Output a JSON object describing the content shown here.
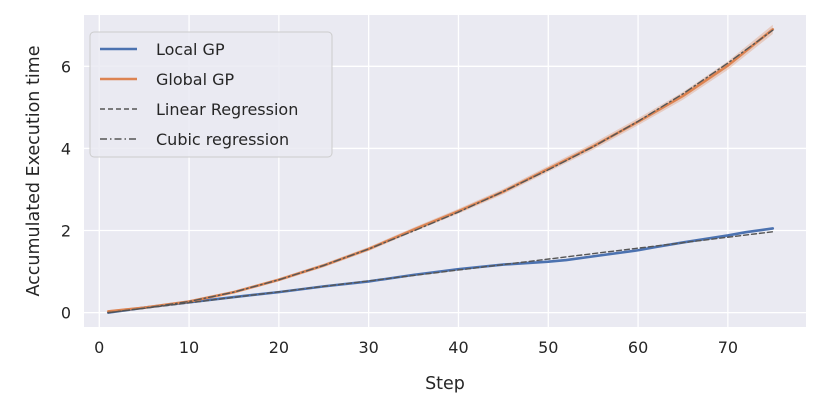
{
  "chart_data": {
    "type": "line",
    "xlabel": "Step",
    "ylabel": "Accumulated Execution time",
    "xlim": [
      -1.7,
      78.7
    ],
    "ylim": [
      -0.35,
      7.25
    ],
    "xticks": [
      0,
      10,
      20,
      30,
      40,
      50,
      60,
      70
    ],
    "yticks": [
      0,
      2,
      4,
      6
    ],
    "grid": true,
    "background": "#eaeaf2",
    "legend_position": "top-left",
    "series": [
      {
        "name": "Local GP",
        "color": "#4c72b0",
        "style": "solid",
        "band": false,
        "x": [
          1,
          5,
          10,
          15,
          20,
          25,
          30,
          35,
          40,
          45,
          50,
          52,
          55,
          60,
          62,
          65,
          70,
          72,
          75
        ],
        "y": [
          0.0,
          0.12,
          0.25,
          0.38,
          0.5,
          0.64,
          0.76,
          0.92,
          1.06,
          1.17,
          1.24,
          1.28,
          1.37,
          1.52,
          1.6,
          1.71,
          1.88,
          1.96,
          2.05
        ]
      },
      {
        "name": "Global GP",
        "color": "#dd8452",
        "style": "solid",
        "band": true,
        "x": [
          1,
          5,
          10,
          15,
          20,
          25,
          30,
          35,
          40,
          45,
          50,
          55,
          60,
          65,
          70,
          75
        ],
        "y": [
          0.03,
          0.12,
          0.27,
          0.5,
          0.8,
          1.15,
          1.55,
          2.02,
          2.47,
          2.95,
          3.5,
          4.05,
          4.65,
          5.28,
          6.02,
          6.9
        ]
      },
      {
        "name": "Linear Regression",
        "color": "#555555",
        "style": "dashed",
        "band": false,
        "x": [
          1,
          75
        ],
        "y": [
          0.0,
          1.97
        ]
      },
      {
        "name": "Cubic regression",
        "color": "#555555",
        "style": "dashdot",
        "band": false,
        "x": [
          1,
          5,
          10,
          15,
          20,
          25,
          30,
          35,
          40,
          45,
          50,
          55,
          60,
          65,
          70,
          75
        ],
        "y": [
          0.0,
          0.11,
          0.27,
          0.5,
          0.8,
          1.15,
          1.55,
          1.99,
          2.45,
          2.95,
          3.48,
          4.04,
          4.66,
          5.33,
          6.08,
          6.88
        ]
      }
    ]
  }
}
